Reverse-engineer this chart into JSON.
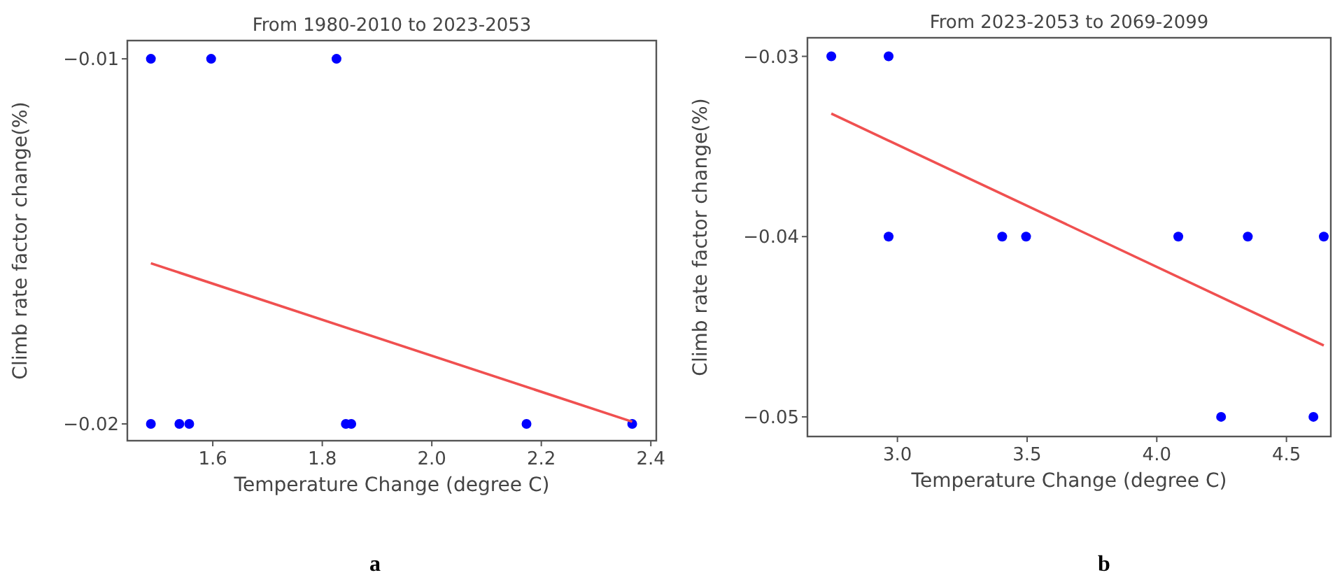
{
  "chart_data": [
    {
      "type": "scatter",
      "title": "From 1980-2010 to 2023-2053",
      "xlabel": "Temperature Change (degree C)",
      "ylabel": "Climb rate factor change(%)",
      "annotations": [
        "a"
      ],
      "xlim": [
        1.444,
        2.41
      ],
      "ylim": [
        -0.02046,
        -0.0095
      ],
      "xticks": [
        1.6,
        1.8,
        {
          "value": 2,
          "label": "2.0"
        },
        2.2,
        2.4
      ],
      "yticks": [
        {
          "value": -0.02,
          "label": "−0.02"
        },
        {
          "value": -0.01,
          "label": "−0.01"
        }
      ],
      "grid": false,
      "series": [
        {
          "marker": "circle",
          "color": "#0000ff",
          "x": [
            1.487,
            1.597,
            1.826,
            1.487,
            1.539,
            1.557,
            1.843,
            1.853,
            2.173,
            2.366
          ],
          "values": [
            -0.01,
            -0.01,
            -0.01,
            -0.02,
            -0.02,
            -0.02,
            -0.02,
            -0.02,
            -0.02,
            -0.02
          ]
        },
        {
          "type": "line",
          "color": "#f05050",
          "x": [
            1.487,
            2.366
          ],
          "values": [
            -0.0156,
            -0.01994
          ]
        }
      ]
    },
    {
      "type": "scatter",
      "title": "From 2023-2053 to 2069-2099",
      "xlabel": "Temperature Change (degree C)",
      "ylabel": "Climb rate factor change(%)",
      "annotations": [
        "b"
      ],
      "xlim": [
        2.653,
        4.671
      ],
      "ylim": [
        -0.05109,
        -0.02897
      ],
      "xticks": [
        {
          "value": 3,
          "label": "3.0"
        },
        3.5,
        {
          "value": 4,
          "label": "4.0"
        },
        4.5
      ],
      "yticks": [
        {
          "value": -0.05,
          "label": "−0.05"
        },
        {
          "value": -0.04,
          "label": "−0.04"
        },
        {
          "value": -0.03,
          "label": "−0.03"
        }
      ],
      "grid": false,
      "series": [
        {
          "marker": "circle",
          "color": "#0000ff",
          "x": [
            2.745,
            2.966,
            2.966,
            3.404,
            3.496,
            4.083,
            4.351,
            4.644,
            4.248,
            4.604
          ],
          "values": [
            -0.03,
            -0.03,
            -0.04,
            -0.04,
            -0.04,
            -0.04,
            -0.04,
            -0.04,
            -0.05,
            -0.05
          ]
        },
        {
          "type": "line",
          "color": "#f05050",
          "x": [
            2.745,
            4.644
          ],
          "values": [
            -0.03318,
            -0.04604
          ]
        }
      ]
    }
  ]
}
